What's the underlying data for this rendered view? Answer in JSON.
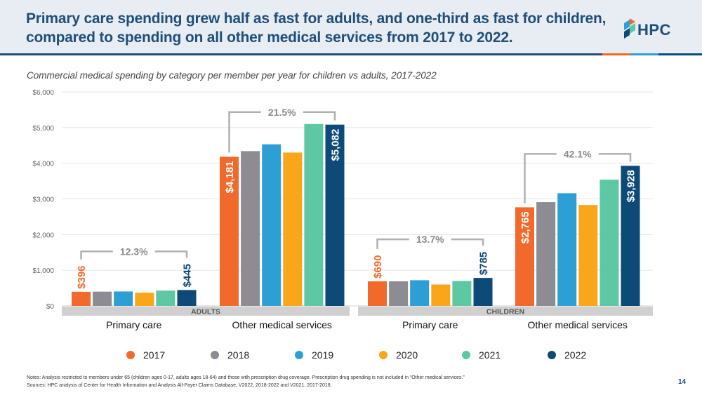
{
  "header": {
    "title_line1": "Primary care spending grew half as fast for adults, and one-third as fast for children,",
    "title_line2": "compared to spending on all other medical services from 2017 to 2022.",
    "logo_text": "HPC"
  },
  "footer": {
    "note1": "Notes: Analysis restricted to members under 65 (children ages 0-17, adults ages 18-64) and those with prescription drug coverage. Prescription drug spending is not included in “Other medical services.”",
    "note2": "Sources: HPC analysis of Center for Health Information and Analysis All-Payer Claims Database, V2022, 2018-2022 and V2021, 2017-2018.",
    "page_number": "14"
  },
  "colors": {
    "2017": "#f26a2b",
    "2018": "#8c8c92",
    "2019": "#2e9fd4",
    "2020": "#f9a61b",
    "2021": "#5ec8a4",
    "2022": "#0d4a78",
    "title": "#1f4e79",
    "panel_band": "#d0d0d0"
  },
  "chart_data": {
    "type": "bar",
    "title": "Commercial medical spending by category per member per year for children vs adults, 2017-2022",
    "xlabel": "",
    "ylabel": "",
    "ylim": [
      0,
      6000
    ],
    "yticks": [
      0,
      1000,
      2000,
      3000,
      4000,
      5000,
      6000
    ],
    "ytick_labels": [
      "$0",
      "$1,000",
      "$2,000",
      "$3,000",
      "$4,000",
      "$5,000",
      "$6,000"
    ],
    "legend": [
      "2017",
      "2018",
      "2019",
      "2020",
      "2021",
      "2022"
    ],
    "legend_position": "bottom",
    "panels": [
      {
        "label": "ADULTS",
        "groups": [
          {
            "category": "Primary care",
            "values": [
              396,
              400,
              405,
              370,
              430,
              445
            ],
            "start_label": "$396",
            "end_label": "$445",
            "growth": "12.3%"
          },
          {
            "category": "Other medical services",
            "values": [
              4181,
              4340,
              4530,
              4300,
              5100,
              5082
            ],
            "start_label": "$4,181",
            "end_label": "$5,082",
            "growth": "21.5%"
          }
        ]
      },
      {
        "label": "CHILDREN",
        "groups": [
          {
            "category": "Primary care",
            "values": [
              690,
              690,
              720,
              600,
              700,
              785
            ],
            "start_label": "$690",
            "end_label": "$785",
            "growth": "13.7%"
          },
          {
            "category": "Other medical services",
            "values": [
              2765,
              2910,
              3160,
              2830,
              3540,
              3928
            ],
            "start_label": "$2,765",
            "end_label": "$3,928",
            "growth": "42.1%"
          }
        ]
      }
    ]
  }
}
